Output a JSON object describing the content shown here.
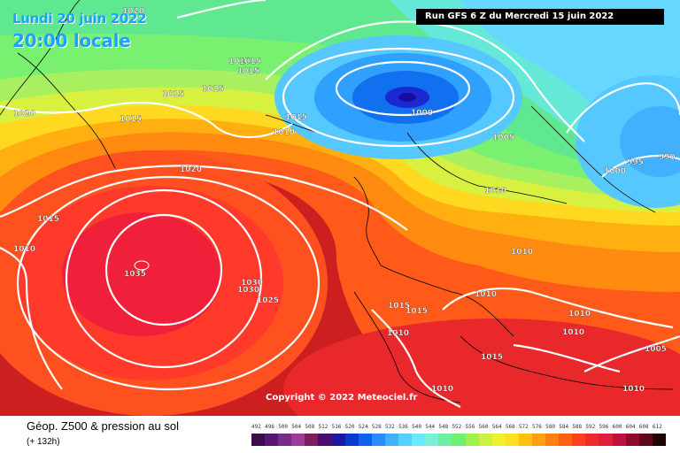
{
  "header": {
    "date": "Lundi 20 juin 2022",
    "time": "20:00 locale",
    "run": "Run GFS 6 Z du Mercredi 15 juin 2022"
  },
  "map": {
    "copyright": "Copyright © 2022 Meteociel.fr",
    "isobar_labels": [
      "1020",
      "1015",
      "1015",
      "1015",
      "1015",
      "1015",
      "1020",
      "1015",
      "1010",
      "1015",
      "1010",
      "1000",
      "1005",
      "995",
      "990",
      "1000",
      "1020",
      "1015",
      "1010",
      "1035",
      "1030",
      "1030",
      "1025",
      "1010",
      "1010",
      "1015",
      "1015",
      "1010",
      "1010",
      "1015",
      "1010",
      "1010",
      "1005",
      "1010"
    ]
  },
  "footer": {
    "title": "Géop. Z500 & pression au sol",
    "subtitle": "(+ 132h)"
  },
  "scale": {
    "labels": [
      "492",
      "496",
      "500",
      "504",
      "508",
      "512",
      "516",
      "520",
      "524",
      "528",
      "532",
      "536",
      "540",
      "544",
      "548",
      "552",
      "556",
      "560",
      "564",
      "568",
      "572",
      "576",
      "580",
      "584",
      "588",
      "592",
      "596",
      "600",
      "604",
      "608",
      "612"
    ],
    "colors": [
      "#3b0a4f",
      "#5a1473",
      "#7a2a8a",
      "#9a3d9a",
      "#7c1e5e",
      "#4a0f6e",
      "#1a1aa0",
      "#0a3ad0",
      "#1060f0",
      "#2a8cff",
      "#40b0ff",
      "#55d0ff",
      "#6ae8ff",
      "#7af0d8",
      "#6cf0a0",
      "#70f070",
      "#a0f050",
      "#d0f040",
      "#f0f030",
      "#ffe020",
      "#ffc010",
      "#ffa010",
      "#ff8010",
      "#ff6010",
      "#ff4020",
      "#f02a2a",
      "#e01f3a",
      "#c01040",
      "#900a30",
      "#600818",
      "#200404"
    ]
  }
}
